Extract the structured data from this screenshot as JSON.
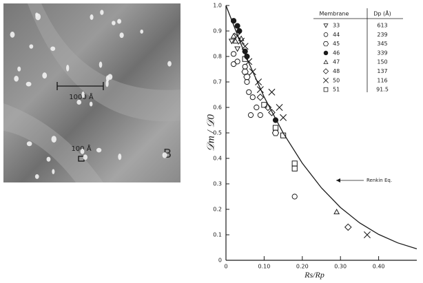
{
  "micrograph": {
    "scale_bar_large": "1000 Å",
    "scale_bar_small": "100 Å",
    "panel_label": "B"
  },
  "chart_data": {
    "type": "scatter",
    "x_label": "Rs/Rp",
    "y_label": "𝒟m / 𝒟0",
    "xlim": [
      0,
      0.5
    ],
    "ylim": [
      0,
      1
    ],
    "xticks": [
      0,
      {
        "value": 0.1,
        "label": "0.10"
      },
      {
        "value": 0.2,
        "label": "0.20"
      },
      {
        "value": 0.3,
        "label": "0.30"
      },
      {
        "value": 0.4,
        "label": "0.40"
      }
    ],
    "yticks": [
      0,
      0.1,
      0.2,
      0.3,
      0.4,
      0.5,
      0.6,
      0.7,
      0.8,
      0.9,
      {
        "value": 1,
        "label": "1.0"
      }
    ],
    "color": "#1a1a1a",
    "legend": {
      "columns": [
        "Membrane",
        "Dp (Å)"
      ]
    },
    "series": [
      {
        "name": "33",
        "marker": "triangle-down",
        "pore_diameter": 613,
        "x": [
          0.015,
          0.03
        ],
        "values": [
          0.86,
          0.83
        ]
      },
      {
        "name": "44",
        "marker": "circle",
        "pore_diameter": 239,
        "x": [
          0.02,
          0.03,
          0.05,
          0.055,
          0.06,
          0.07,
          0.08,
          0.02,
          0.18,
          0.065,
          0.09
        ],
        "values": [
          0.81,
          0.78,
          0.76,
          0.7,
          0.66,
          0.64,
          0.6,
          0.77,
          0.25,
          0.57,
          0.57
        ]
      },
      {
        "name": "45",
        "marker": "hexagon",
        "pore_diameter": 345,
        "x": [
          0.05,
          0.055,
          0.13
        ],
        "values": [
          0.74,
          0.72,
          0.5
        ]
      },
      {
        "name": "46",
        "marker": "filled-circle",
        "pore_diameter": 339,
        "x": [
          0.02,
          0.03,
          0.035,
          0.05,
          0.055,
          0.13
        ],
        "values": [
          0.94,
          0.92,
          0.9,
          0.82,
          0.8,
          0.55
        ]
      },
      {
        "name": "47",
        "marker": "triangle",
        "pore_diameter": 150,
        "x": [
          0.02,
          0.025,
          0.04,
          0.29
        ],
        "values": [
          0.88,
          0.86,
          0.87,
          0.19
        ]
      },
      {
        "name": "48",
        "marker": "diamond",
        "pore_diameter": 137,
        "x": [
          0.11,
          0.12,
          0.09,
          0.32
        ],
        "values": [
          0.6,
          0.58,
          0.64,
          0.13
        ]
      },
      {
        "name": "50",
        "marker": "x",
        "pore_diameter": 116,
        "x": [
          0.03,
          0.04,
          0.05,
          0.06,
          0.07,
          0.085,
          0.09,
          0.12,
          0.14,
          0.15,
          0.37
        ],
        "values": [
          0.88,
          0.86,
          0.84,
          0.78,
          0.74,
          0.7,
          0.67,
          0.66,
          0.6,
          0.56,
          0.1
        ]
      },
      {
        "name": "51",
        "marker": "square",
        "pore_diameter": 91.5,
        "x": [
          0.1,
          0.13,
          0.15,
          0.18,
          0.18,
          0.05
        ],
        "values": [
          0.61,
          0.52,
          0.49,
          0.38,
          0.36,
          0.79
        ]
      }
    ],
    "curve": {
      "name": "Renkin Eq.",
      "x": [
        0,
        0.05,
        0.1,
        0.15,
        0.2,
        0.25,
        0.3,
        0.35,
        0.4,
        0.45,
        0.5
      ],
      "values": [
        1,
        0.808,
        0.641,
        0.4995,
        0.381,
        0.2845,
        0.2072,
        0.1471,
        0.1017,
        0.0684,
        0.0449
      ]
    }
  }
}
